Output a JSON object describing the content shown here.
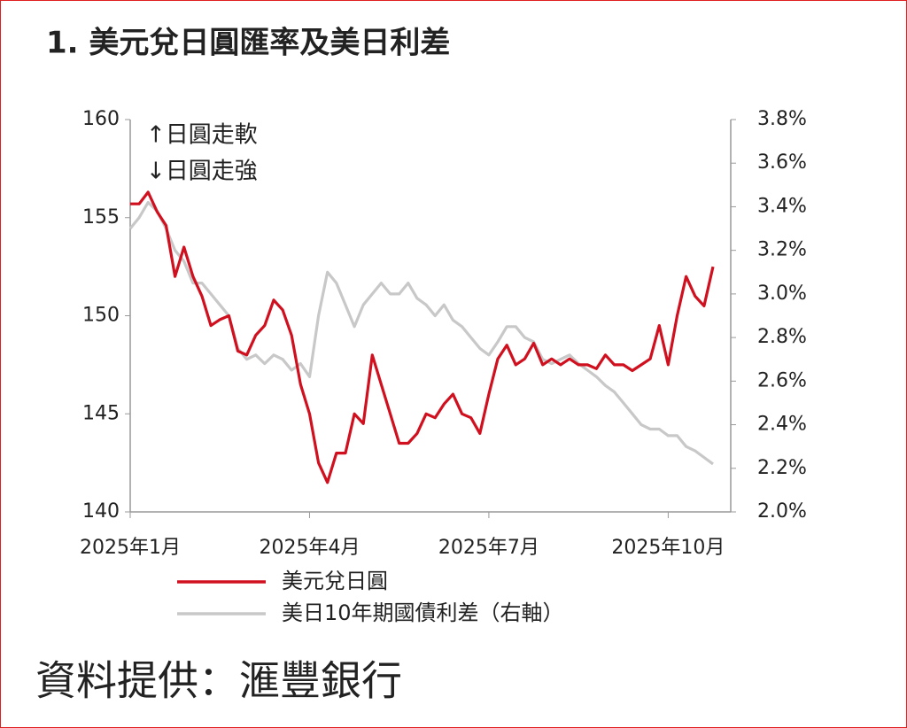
{
  "chart_data": {
    "type": "line",
    "title": "1. 美元兌日圓匯率及美日利差",
    "annotations": [
      "↑日圓走軟",
      "↓日圓走強"
    ],
    "source": "資料提供：滙豐銀行",
    "categories": [
      "2025年1月",
      null,
      null,
      null,
      null,
      null,
      null,
      null,
      null,
      null,
      null,
      null,
      null,
      null,
      null,
      null,
      null,
      null,
      null,
      null,
      "2025年4月",
      null,
      null,
      null,
      null,
      null,
      null,
      null,
      null,
      null,
      null,
      null,
      null,
      null,
      null,
      null,
      null,
      null,
      null,
      null,
      "2025年7月",
      null,
      null,
      null,
      null,
      null,
      null,
      null,
      null,
      null,
      null,
      null,
      null,
      null,
      null,
      null,
      null,
      null,
      null,
      null,
      "2025年10月",
      null,
      null,
      null,
      null,
      null
    ],
    "series": [
      {
        "name": "美元兌日圓",
        "color": "#d0101e",
        "axis": "y",
        "values": [
          155.7,
          155.7,
          156.3,
          155.3,
          154.6,
          152,
          153.5,
          152,
          151,
          149.5,
          149.8,
          150,
          148.2,
          148,
          149,
          149.5,
          150.8,
          150.3,
          149,
          146.5,
          145,
          142.5,
          141.5,
          143,
          143,
          145,
          144.5,
          148,
          146.5,
          145,
          143.5,
          143.5,
          144,
          145,
          144.8,
          145.5,
          146,
          145,
          144.8,
          144,
          146,
          147.8,
          148.5,
          147.5,
          147.8,
          148.6,
          147.5,
          147.8,
          147.5,
          147.8,
          147.5,
          147.5,
          147.3,
          148,
          147.5,
          147.5,
          147.2,
          147.5,
          147.8,
          149.5,
          147.5,
          150,
          152,
          151,
          150.5,
          152.5
        ]
      },
      {
        "name": "美日10年期國債利差（右軸）",
        "color": "#c8c8c8",
        "axis": "y2",
        "values": [
          3.3,
          3.35,
          3.42,
          3.38,
          3.3,
          3.2,
          3.15,
          3.05,
          3.05,
          3.0,
          2.95,
          2.9,
          2.75,
          2.7,
          2.72,
          2.68,
          2.72,
          2.7,
          2.65,
          2.68,
          2.62,
          2.9,
          3.1,
          3.05,
          2.95,
          2.85,
          2.95,
          3.0,
          3.05,
          3.0,
          3.0,
          3.05,
          2.98,
          2.95,
          2.9,
          2.95,
          2.88,
          2.85,
          2.8,
          2.75,
          2.72,
          2.78,
          2.85,
          2.85,
          2.8,
          2.78,
          2.7,
          2.68,
          2.7,
          2.72,
          2.68,
          2.65,
          2.62,
          2.58,
          2.55,
          2.5,
          2.45,
          2.4,
          2.38,
          2.38,
          2.35,
          2.35,
          2.3,
          2.28,
          2.25,
          2.22
        ]
      }
    ],
    "ylim": [
      140,
      160
    ],
    "yticks": [
      140,
      145,
      150,
      155,
      160
    ],
    "y2lim": [
      2.0,
      3.8
    ],
    "y2ticks": [
      {
        "value": 2.0,
        "label": "2.0%"
      },
      {
        "value": 2.2,
        "label": "2.2%"
      },
      {
        "value": 2.4,
        "label": "2.4%"
      },
      {
        "value": 2.6,
        "label": "2.6%"
      },
      {
        "value": 2.8,
        "label": "2.8%"
      },
      {
        "value": 3.0,
        "label": "3.0%"
      },
      {
        "value": 3.2,
        "label": "3.2%"
      },
      {
        "value": 3.4,
        "label": "3.4%"
      },
      {
        "value": 3.6,
        "label": "3.6%"
      },
      {
        "value": 3.8,
        "label": "3.8%"
      }
    ],
    "grid": false
  }
}
